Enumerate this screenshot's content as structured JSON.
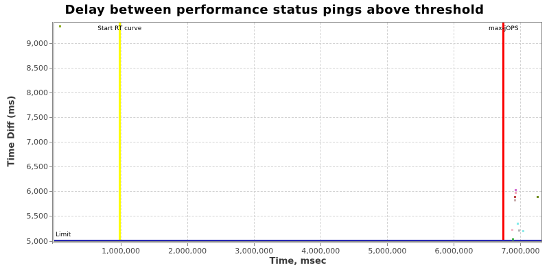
{
  "chart_data": {
    "type": "scatter",
    "title": "Delay between performance status pings above threshold",
    "xlabel": "Time, msec",
    "ylabel": "Time Diff (ms)",
    "xlim": [
      0,
      7314000
    ],
    "ylim": [
      5000,
      9420
    ],
    "grid": true,
    "legend": "none",
    "x_ticks": [
      {
        "value": 1000000,
        "label": "1,000,000"
      },
      {
        "value": 2000000,
        "label": "2,000,000"
      },
      {
        "value": 3000000,
        "label": "3,000,000"
      },
      {
        "value": 4000000,
        "label": "4,000,000"
      },
      {
        "value": 5000000,
        "label": "5,000,000"
      },
      {
        "value": 6000000,
        "label": "6,000,000"
      },
      {
        "value": 7000000,
        "label": "7,000,000"
      }
    ],
    "y_ticks": [
      {
        "value": 5000,
        "label": "5,000"
      },
      {
        "value": 5500,
        "label": "5,500"
      },
      {
        "value": 6000,
        "label": "6,000"
      },
      {
        "value": 6500,
        "label": "6,500"
      },
      {
        "value": 7000,
        "label": "7,000"
      },
      {
        "value": 7500,
        "label": "7,500"
      },
      {
        "value": 8000,
        "label": "8,000"
      },
      {
        "value": 8500,
        "label": "8,500"
      },
      {
        "value": 9000,
        "label": "9,000"
      }
    ],
    "markers": [
      {
        "id": "start-rt-curve",
        "orientation": "vertical",
        "value": 982000,
        "label": "Start RT curve",
        "color": "#fdfd00"
      },
      {
        "id": "max-jops",
        "orientation": "vertical",
        "value": 6745000,
        "label": "max-jOPS",
        "color": "#fb0000"
      },
      {
        "id": "limit",
        "orientation": "horizontal",
        "value": 5000,
        "label": "Limit",
        "color": "#2727b3"
      }
    ],
    "points": [
      {
        "x": 90000,
        "y": 9340,
        "color": "#8fae22"
      },
      {
        "x": 6930000,
        "y": 6030,
        "color": "#d36ad3"
      },
      {
        "x": 6925000,
        "y": 5975,
        "color": "#f5a6bc"
      },
      {
        "x": 6920000,
        "y": 5890,
        "color": "#c04a4a"
      },
      {
        "x": 6920000,
        "y": 5825,
        "color": "#c9aeae"
      },
      {
        "x": 7255000,
        "y": 5890,
        "color": "#708c1c"
      },
      {
        "x": 6955000,
        "y": 5360,
        "color": "#80eaea"
      },
      {
        "x": 6880000,
        "y": 5230,
        "color": "#f6bccb"
      },
      {
        "x": 6975000,
        "y": 5215,
        "color": "#b3b3b3"
      },
      {
        "x": 7040000,
        "y": 5200,
        "color": "#8fe9e9"
      },
      {
        "x": 6890000,
        "y": 5040,
        "color": "#3cb043"
      }
    ]
  }
}
